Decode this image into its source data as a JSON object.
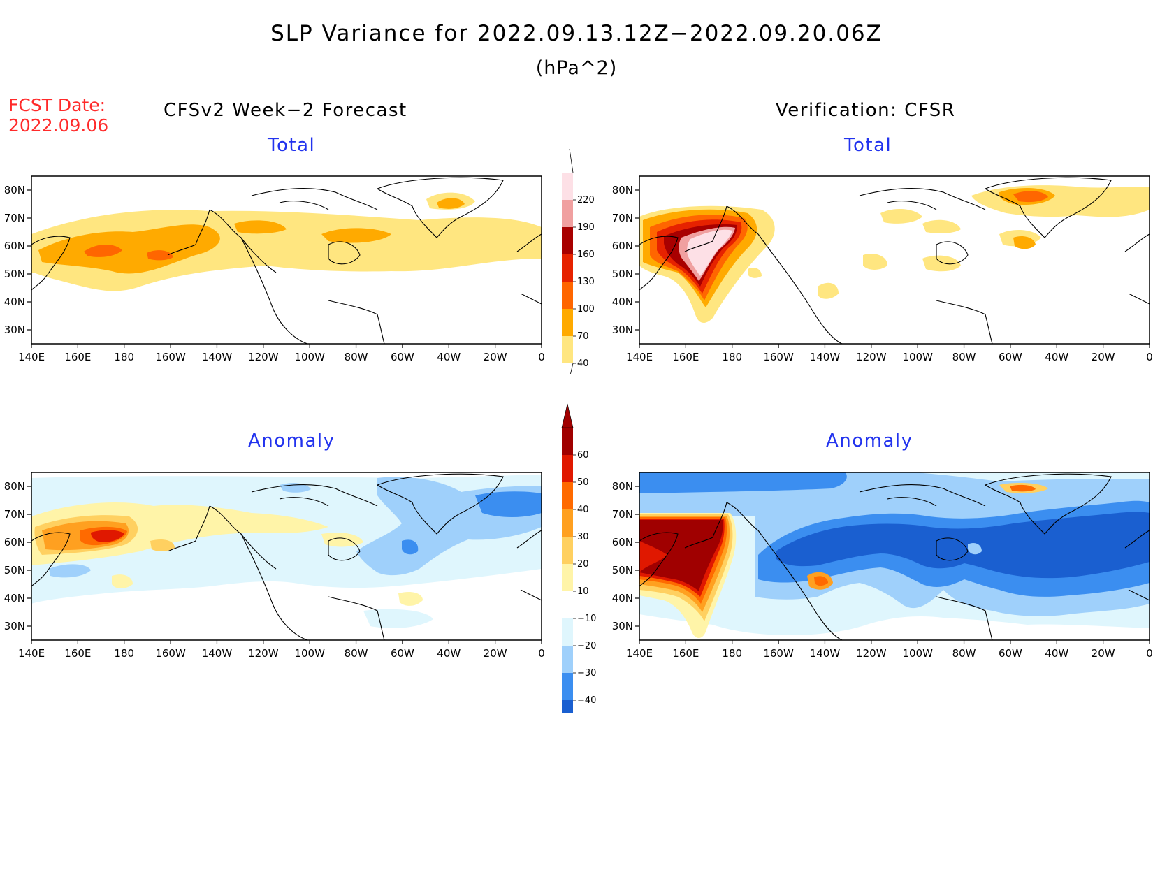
{
  "title": "SLP Variance for 2022.09.13.12Z−2022.09.20.06Z",
  "units": "(hPa^2)",
  "fcst_date": {
    "label": "FCST Date:",
    "value": "2022.09.06"
  },
  "left_header": "CFSv2 Week−2 Forecast",
  "right_header": "Verification: CFSR",
  "panels": {
    "fc_total": "Total",
    "ver_total": "Total",
    "fc_anom": "Anomaly",
    "ver_anom": "Anomaly"
  },
  "lat_labels": [
    "80N",
    "70N",
    "60N",
    "50N",
    "40N",
    "30N"
  ],
  "lon_labels": [
    "140E",
    "160E",
    "180",
    "160W",
    "140W",
    "120W",
    "100W",
    "80W",
    "60W",
    "40W",
    "20W",
    "0"
  ],
  "total_colorbar": {
    "levels": [
      "40",
      "70",
      "100",
      "130",
      "160",
      "190",
      "220"
    ],
    "colors": [
      "#ffe680",
      "#ffaa00",
      "#ff6600",
      "#e62200",
      "#a80000",
      "#f0a0a0",
      "#fde0e6"
    ]
  },
  "anomaly_colorbar": {
    "levels": [
      "−40",
      "−30",
      "−20",
      "−10",
      "10",
      "20",
      "30",
      "40",
      "50",
      "60"
    ],
    "colors": [
      "#1a5fd0",
      "#3b8ef0",
      "#9fd0fb",
      "#dff6fd",
      "#ffffff",
      "#fff4a8",
      "#ffd060",
      "#ffa020",
      "#ff6a00",
      "#e01800",
      "#a00000"
    ]
  }
}
